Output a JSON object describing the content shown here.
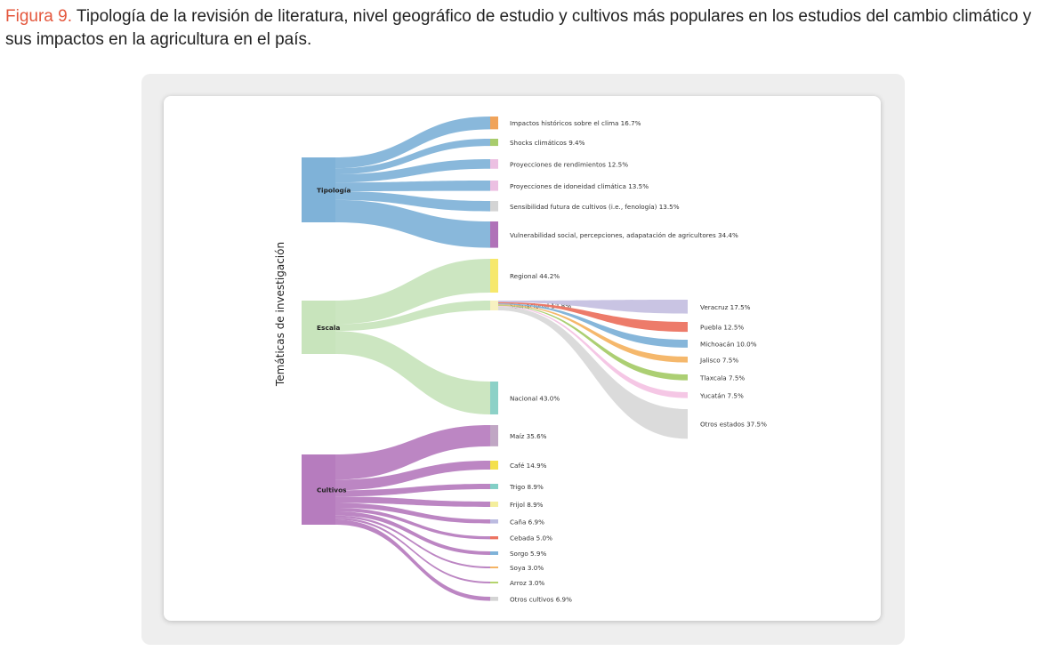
{
  "caption": {
    "figure_label": "Figura 9.",
    "text": "Tipología de la revisión de literatura, nivel geográfico de estudio y cultivos más populares en los estudios del cambio climático y sus impactos en la agricultura en el país."
  },
  "chart_data": {
    "type": "sankey",
    "ylabel": "Temáticas de investigación",
    "groups": [
      {
        "name": "Tipología",
        "color": "#7fb2d8",
        "children": [
          {
            "label": "Impactos históricos sobre el clima 16.7%",
            "value": 16.7,
            "color": "#f0a35a"
          },
          {
            "label": "Shocks climáticos 9.4%",
            "value": 9.4,
            "color": "#a8cc6c"
          },
          {
            "label": "Proyecciones de rendimientos 12.5%",
            "value": 12.5,
            "color": "#ecc0e2"
          },
          {
            "label": "Proyecciones de idoneidad climática 13.5%",
            "value": 13.5,
            "color": "#ecc0e2"
          },
          {
            "label": "Sensibilidad futura de cultivos (i.e., fenología) 13.5%",
            "value": 13.5,
            "color": "#d4d4d4"
          },
          {
            "label": "Vulnerabilidad social, percepciones, adapatación de agricultores 34.4%",
            "value": 34.4,
            "color": "#b072b8"
          }
        ]
      },
      {
        "name": "Escala",
        "color": "#c8e4bc",
        "children": [
          {
            "label": "Regional 44.2%",
            "value": 44.2,
            "color": "#f6e86c"
          },
          {
            "label": "Subnacional 12.8%",
            "value": 12.8,
            "color": "#f7f1c0"
          },
          {
            "label": "Nacional 43.0%",
            "value": 43.0,
            "color": "#8dd1c7"
          }
        ]
      },
      {
        "name": "Cultivos",
        "color": "#b67cbe",
        "children": [
          {
            "label": "Maíz 35.6%",
            "value": 35.6,
            "color": "#c0a6c4"
          },
          {
            "label": "Café 14.9%",
            "value": 14.9,
            "color": "#f4e04c"
          },
          {
            "label": "Trigo 8.9%",
            "value": 8.9,
            "color": "#82cfc6"
          },
          {
            "label": "Frijol 8.9%",
            "value": 8.9,
            "color": "#f4ee9c"
          },
          {
            "label": "Caña 6.9%",
            "value": 6.9,
            "color": "#bcbbe0"
          },
          {
            "label": "Cebada 5.0%",
            "value": 5.0,
            "color": "#ec7462"
          },
          {
            "label": "Sorgo 5.9%",
            "value": 5.9,
            "color": "#7fb2d8"
          },
          {
            "label": "Soya 3.0%",
            "value": 3.0,
            "color": "#f4b464"
          },
          {
            "label": "Arroz 3.0%",
            "value": 3.0,
            "color": "#b4d46c"
          },
          {
            "label": "Otros cultivos 6.9%",
            "value": 6.9,
            "color": "#d4d4d4"
          }
        ]
      }
    ],
    "subnacional_breakdown": [
      {
        "label": "Veracruz 17.5%",
        "value": 17.5,
        "color": "#c6c1e2"
      },
      {
        "label": "Puebla 12.5%",
        "value": 12.5,
        "color": "#ec7462"
      },
      {
        "label": "Michoacán 10.0%",
        "value": 10.0,
        "color": "#7fb2d8"
      },
      {
        "label": "Jalisco 7.5%",
        "value": 7.5,
        "color": "#f4b464"
      },
      {
        "label": "Tlaxcala 7.5%",
        "value": 7.5,
        "color": "#a8cc6c"
      },
      {
        "label": "Yucatán 7.5%",
        "value": 7.5,
        "color": "#f4c4e4"
      },
      {
        "label": "Otros estados 37.5%",
        "value": 37.5,
        "color": "#d9d9d9"
      }
    ]
  }
}
